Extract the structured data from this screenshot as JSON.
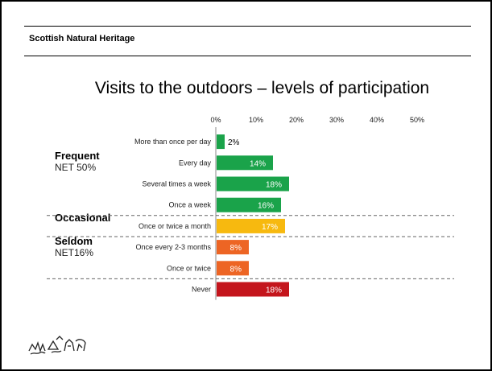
{
  "org": "Scottish Natural Heritage",
  "title": "Visits to the outdoors – levels of participation",
  "groups": [
    {
      "name": "Frequent",
      "sub": "NET 50%",
      "color": "#c0172b"
    },
    {
      "name": "Occasional",
      "sub": "",
      "color": "#f08a0c"
    },
    {
      "name": "Seldom",
      "sub": "NET16%",
      "color": "#e8541c"
    }
  ],
  "chart_data": {
    "type": "bar",
    "orientation": "horizontal",
    "categories": [
      "More than once per day",
      "Every day",
      "Several times a week",
      "Once a week",
      "Once or twice a month",
      "Once every 2-3 months",
      "Once or twice",
      "Never"
    ],
    "values": [
      2,
      14,
      18,
      16,
      17,
      8,
      8,
      18
    ],
    "labels": [
      "2%",
      "14%",
      "18%",
      "16%",
      "17%",
      "8%",
      "8%",
      "18%"
    ],
    "colors": [
      "#1aa34a",
      "#1aa34a",
      "#1aa34a",
      "#1aa34a",
      "#f7b90f",
      "#ed6524",
      "#ed6524",
      "#c4151c"
    ],
    "xticks": [
      "0%",
      "10%",
      "20%",
      "30%",
      "40%",
      "50%"
    ],
    "xlim": [
      0,
      50
    ]
  }
}
